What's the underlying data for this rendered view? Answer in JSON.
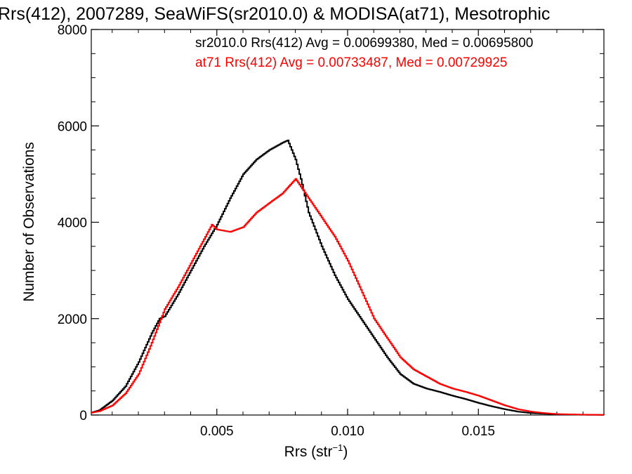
{
  "chart_data": {
    "type": "line",
    "title": "Rrs(412), 2007289, SeaWiFS(sr2010.0) & MODISA(at71), Mesotrophic",
    "xlabel_base": "Rrs (str",
    "xlabel_sup": "−1",
    "xlabel_close": ")",
    "ylabel": "Number of Observations",
    "xlim": [
      0.0002,
      0.0198
    ],
    "ylim": [
      0,
      8000
    ],
    "x_ticks": [
      0.005,
      0.01,
      0.015
    ],
    "x_tick_labels": [
      "0.005",
      "0.010",
      "0.015"
    ],
    "y_ticks": [
      0,
      2000,
      4000,
      6000,
      8000
    ],
    "y_tick_labels": [
      "0",
      "2000",
      "4000",
      "6000",
      "8000"
    ],
    "legend_position": "top-right",
    "series": [
      {
        "name": "sr2010.0 Rrs(412) Avg = 0.00699380, Med = 0.00695800",
        "color": "#000000",
        "points": [
          [
            0.0002,
            50
          ],
          [
            0.0005,
            100
          ],
          [
            0.001,
            300
          ],
          [
            0.0015,
            600
          ],
          [
            0.002,
            1100
          ],
          [
            0.0025,
            1700
          ],
          [
            0.0028,
            2000
          ],
          [
            0.003,
            2050
          ],
          [
            0.0035,
            2500
          ],
          [
            0.004,
            3000
          ],
          [
            0.0045,
            3500
          ],
          [
            0.005,
            3950
          ],
          [
            0.0055,
            4500
          ],
          [
            0.006,
            5000
          ],
          [
            0.0065,
            5300
          ],
          [
            0.007,
            5500
          ],
          [
            0.0075,
            5650
          ],
          [
            0.0077,
            5700
          ],
          [
            0.008,
            5300
          ],
          [
            0.0082,
            4900
          ],
          [
            0.0085,
            4200
          ],
          [
            0.009,
            3500
          ],
          [
            0.0095,
            2900
          ],
          [
            0.01,
            2400
          ],
          [
            0.0105,
            2000
          ],
          [
            0.011,
            1600
          ],
          [
            0.0115,
            1200
          ],
          [
            0.012,
            850
          ],
          [
            0.0125,
            650
          ],
          [
            0.013,
            550
          ],
          [
            0.0135,
            480
          ],
          [
            0.014,
            400
          ],
          [
            0.0145,
            330
          ],
          [
            0.015,
            250
          ],
          [
            0.0155,
            180
          ],
          [
            0.016,
            120
          ],
          [
            0.0165,
            70
          ],
          [
            0.017,
            40
          ],
          [
            0.018,
            15
          ],
          [
            0.019,
            5
          ],
          [
            0.0198,
            2
          ]
        ]
      },
      {
        "name": "at71 Rrs(412) Avg = 0.00733487, Med = 0.00729925",
        "color": "#ff0000",
        "points": [
          [
            0.0002,
            50
          ],
          [
            0.0005,
            80
          ],
          [
            0.001,
            200
          ],
          [
            0.0015,
            450
          ],
          [
            0.002,
            850
          ],
          [
            0.0025,
            1500
          ],
          [
            0.003,
            2200
          ],
          [
            0.0035,
            2650
          ],
          [
            0.004,
            3150
          ],
          [
            0.0045,
            3650
          ],
          [
            0.0048,
            3950
          ],
          [
            0.005,
            3850
          ],
          [
            0.0055,
            3800
          ],
          [
            0.006,
            3900
          ],
          [
            0.0065,
            4200
          ],
          [
            0.007,
            4400
          ],
          [
            0.0075,
            4600
          ],
          [
            0.008,
            4900
          ],
          [
            0.0085,
            4500
          ],
          [
            0.009,
            4100
          ],
          [
            0.0095,
            3700
          ],
          [
            0.01,
            3200
          ],
          [
            0.0105,
            2600
          ],
          [
            0.011,
            2000
          ],
          [
            0.0115,
            1600
          ],
          [
            0.012,
            1200
          ],
          [
            0.0125,
            950
          ],
          [
            0.013,
            800
          ],
          [
            0.0135,
            650
          ],
          [
            0.014,
            550
          ],
          [
            0.0145,
            480
          ],
          [
            0.015,
            400
          ],
          [
            0.0155,
            300
          ],
          [
            0.016,
            200
          ],
          [
            0.0165,
            120
          ],
          [
            0.017,
            70
          ],
          [
            0.0175,
            40
          ],
          [
            0.018,
            20
          ],
          [
            0.019,
            8
          ],
          [
            0.0198,
            3
          ]
        ]
      }
    ]
  }
}
